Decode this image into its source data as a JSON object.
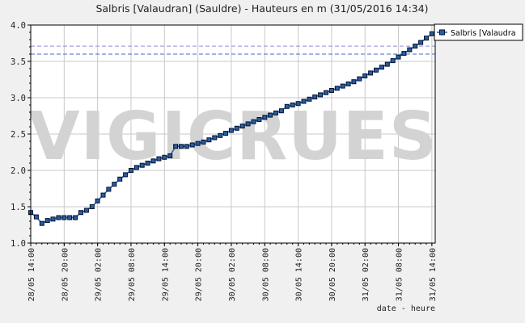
{
  "colors": {
    "background": "#f0f0f0",
    "plot_bg": "#ffffff",
    "series_line": "#2a5d9f",
    "marker_fill": "#2a5d9f",
    "marker_stroke": "#001133",
    "ref_line_purple": "#8f8fd6",
    "ref_line_blue": "#3a6fc8",
    "grid": "#c8c8c8",
    "watermark": "#d3d3d3"
  },
  "watermark": "VIGICRUES",
  "chart_data": {
    "type": "line",
    "title": "Salbris [Valaudran] (Sauldre) - Hauteurs en m (31/05/2016 14:34)",
    "xlabel": "date - heure",
    "ylabel": "",
    "ylim": [
      1.0,
      4.0
    ],
    "yticks": [
      "1.0",
      "1.5",
      "2.0",
      "2.5",
      "3.0",
      "3.5",
      "4.0"
    ],
    "x_hours_range": [
      0,
      72.6
    ],
    "xticks": [
      {
        "h": 0,
        "label": "28/05 14:00"
      },
      {
        "h": 6,
        "label": "28/05 20:00"
      },
      {
        "h": 12,
        "label": "29/05 02:00"
      },
      {
        "h": 18,
        "label": "29/05 08:00"
      },
      {
        "h": 24,
        "label": "29/05 14:00"
      },
      {
        "h": 30,
        "label": "29/05 20:00"
      },
      {
        "h": 36,
        "label": "30/05 02:00"
      },
      {
        "h": 42,
        "label": "30/05 08:00"
      },
      {
        "h": 48,
        "label": "30/05 14:00"
      },
      {
        "h": 54,
        "label": "30/05 20:00"
      },
      {
        "h": 60,
        "label": "31/05 02:00"
      },
      {
        "h": 66,
        "label": "31/05 08:00"
      },
      {
        "h": 72,
        "label": "31/05 14:00"
      }
    ],
    "grid": true,
    "legend_position": "top-right",
    "reference_lines": [
      {
        "y": 3.71,
        "color": "#8f8fd6"
      },
      {
        "y": 3.6,
        "color": "#3a6fc8"
      }
    ],
    "series": [
      {
        "name": "Salbris [Valaudra",
        "x": [
          0,
          1,
          2,
          3,
          4,
          5,
          6,
          7,
          8,
          9,
          10,
          11,
          12,
          13,
          14,
          15,
          16,
          17,
          18,
          19,
          20,
          21,
          22,
          23,
          24,
          25,
          26,
          27,
          28,
          29,
          30,
          31,
          32,
          33,
          34,
          35,
          36,
          37,
          38,
          39,
          40,
          41,
          42,
          43,
          44,
          45,
          46,
          47,
          48,
          49,
          50,
          51,
          52,
          53,
          54,
          55,
          56,
          57,
          58,
          59,
          60,
          61,
          62,
          63,
          64,
          65,
          66,
          67,
          68,
          69,
          70,
          71,
          72
        ],
        "y": [
          1.42,
          1.36,
          1.27,
          1.31,
          1.33,
          1.35,
          1.35,
          1.35,
          1.35,
          1.42,
          1.45,
          1.5,
          1.58,
          1.66,
          1.74,
          1.81,
          1.88,
          1.94,
          2.0,
          2.04,
          2.07,
          2.1,
          2.13,
          2.16,
          2.18,
          2.2,
          2.33,
          2.33,
          2.33,
          2.35,
          2.37,
          2.39,
          2.42,
          2.45,
          2.48,
          2.51,
          2.55,
          2.58,
          2.61,
          2.64,
          2.67,
          2.7,
          2.73,
          2.76,
          2.79,
          2.82,
          2.88,
          2.9,
          2.92,
          2.95,
          2.98,
          3.01,
          3.04,
          3.07,
          3.1,
          3.13,
          3.16,
          3.19,
          3.22,
          3.26,
          3.3,
          3.34,
          3.38,
          3.42,
          3.46,
          3.51,
          3.56,
          3.61,
          3.66,
          3.71,
          3.76,
          3.82,
          3.88
        ]
      }
    ]
  }
}
